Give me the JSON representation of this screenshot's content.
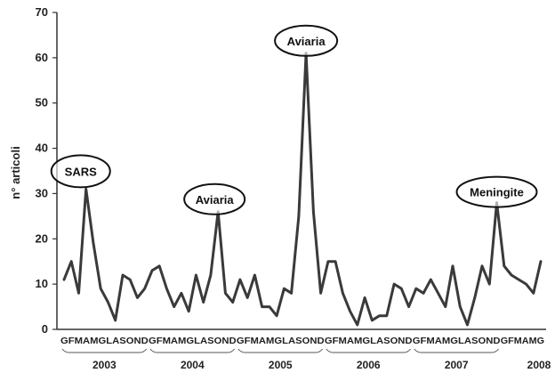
{
  "chart_data": {
    "type": "line",
    "title": "",
    "xlabel": "",
    "ylabel": "n° articoli",
    "ylim": [
      0,
      70
    ],
    "yticks": [
      0,
      10,
      20,
      30,
      40,
      50,
      60,
      70
    ],
    "grid": false,
    "series_color": "#3a3a3a",
    "x": [
      "G",
      "F",
      "M",
      "A",
      "M",
      "G",
      "L",
      "A",
      "S",
      "O",
      "N",
      "D",
      "G",
      "F",
      "M",
      "A",
      "M",
      "G",
      "L",
      "A",
      "S",
      "O",
      "N",
      "D",
      "G",
      "F",
      "M",
      "A",
      "M",
      "G",
      "L",
      "A",
      "S",
      "O",
      "N",
      "D",
      "G",
      "F",
      "M",
      "A",
      "M",
      "G",
      "L",
      "A",
      "S",
      "O",
      "N",
      "D",
      "G",
      "F",
      "M",
      "A",
      "M",
      "G",
      "L",
      "A",
      "S",
      "O",
      "N",
      "D",
      "G",
      "F",
      "M",
      "A",
      "M",
      "G"
    ],
    "x_tick_text": [
      "GFMAMGLASOND",
      "GFMAMGLASOND",
      "GFMAMGLASOND",
      "GFMAMGLASOND",
      "GFMAMGLASOND",
      "GFMAMG"
    ],
    "series": [
      {
        "values": [
          11,
          15,
          8,
          31,
          19,
          9,
          6,
          2,
          12,
          11,
          7,
          9,
          13,
          14,
          9,
          5,
          8,
          4,
          12,
          6,
          12,
          26,
          8,
          6,
          11,
          7,
          12,
          5,
          5,
          3,
          9,
          8,
          25,
          61,
          26,
          8,
          15,
          15,
          8,
          4,
          1,
          7,
          2,
          3,
          3,
          10,
          9,
          5,
          9,
          8,
          11,
          8,
          5,
          14,
          5,
          1,
          7,
          14,
          10,
          28,
          14,
          12,
          11,
          10,
          8,
          15
        ]
      }
    ],
    "years": [
      "2003",
      "2004",
      "2005",
      "2006",
      "2007",
      "2008"
    ],
    "annotations": [
      {
        "text": "SARS",
        "index": 3
      },
      {
        "text": "Aviaria",
        "index": 21
      },
      {
        "text": "Aviaria",
        "index": 33
      },
      {
        "text": "Meningite",
        "index": 59
      }
    ]
  }
}
